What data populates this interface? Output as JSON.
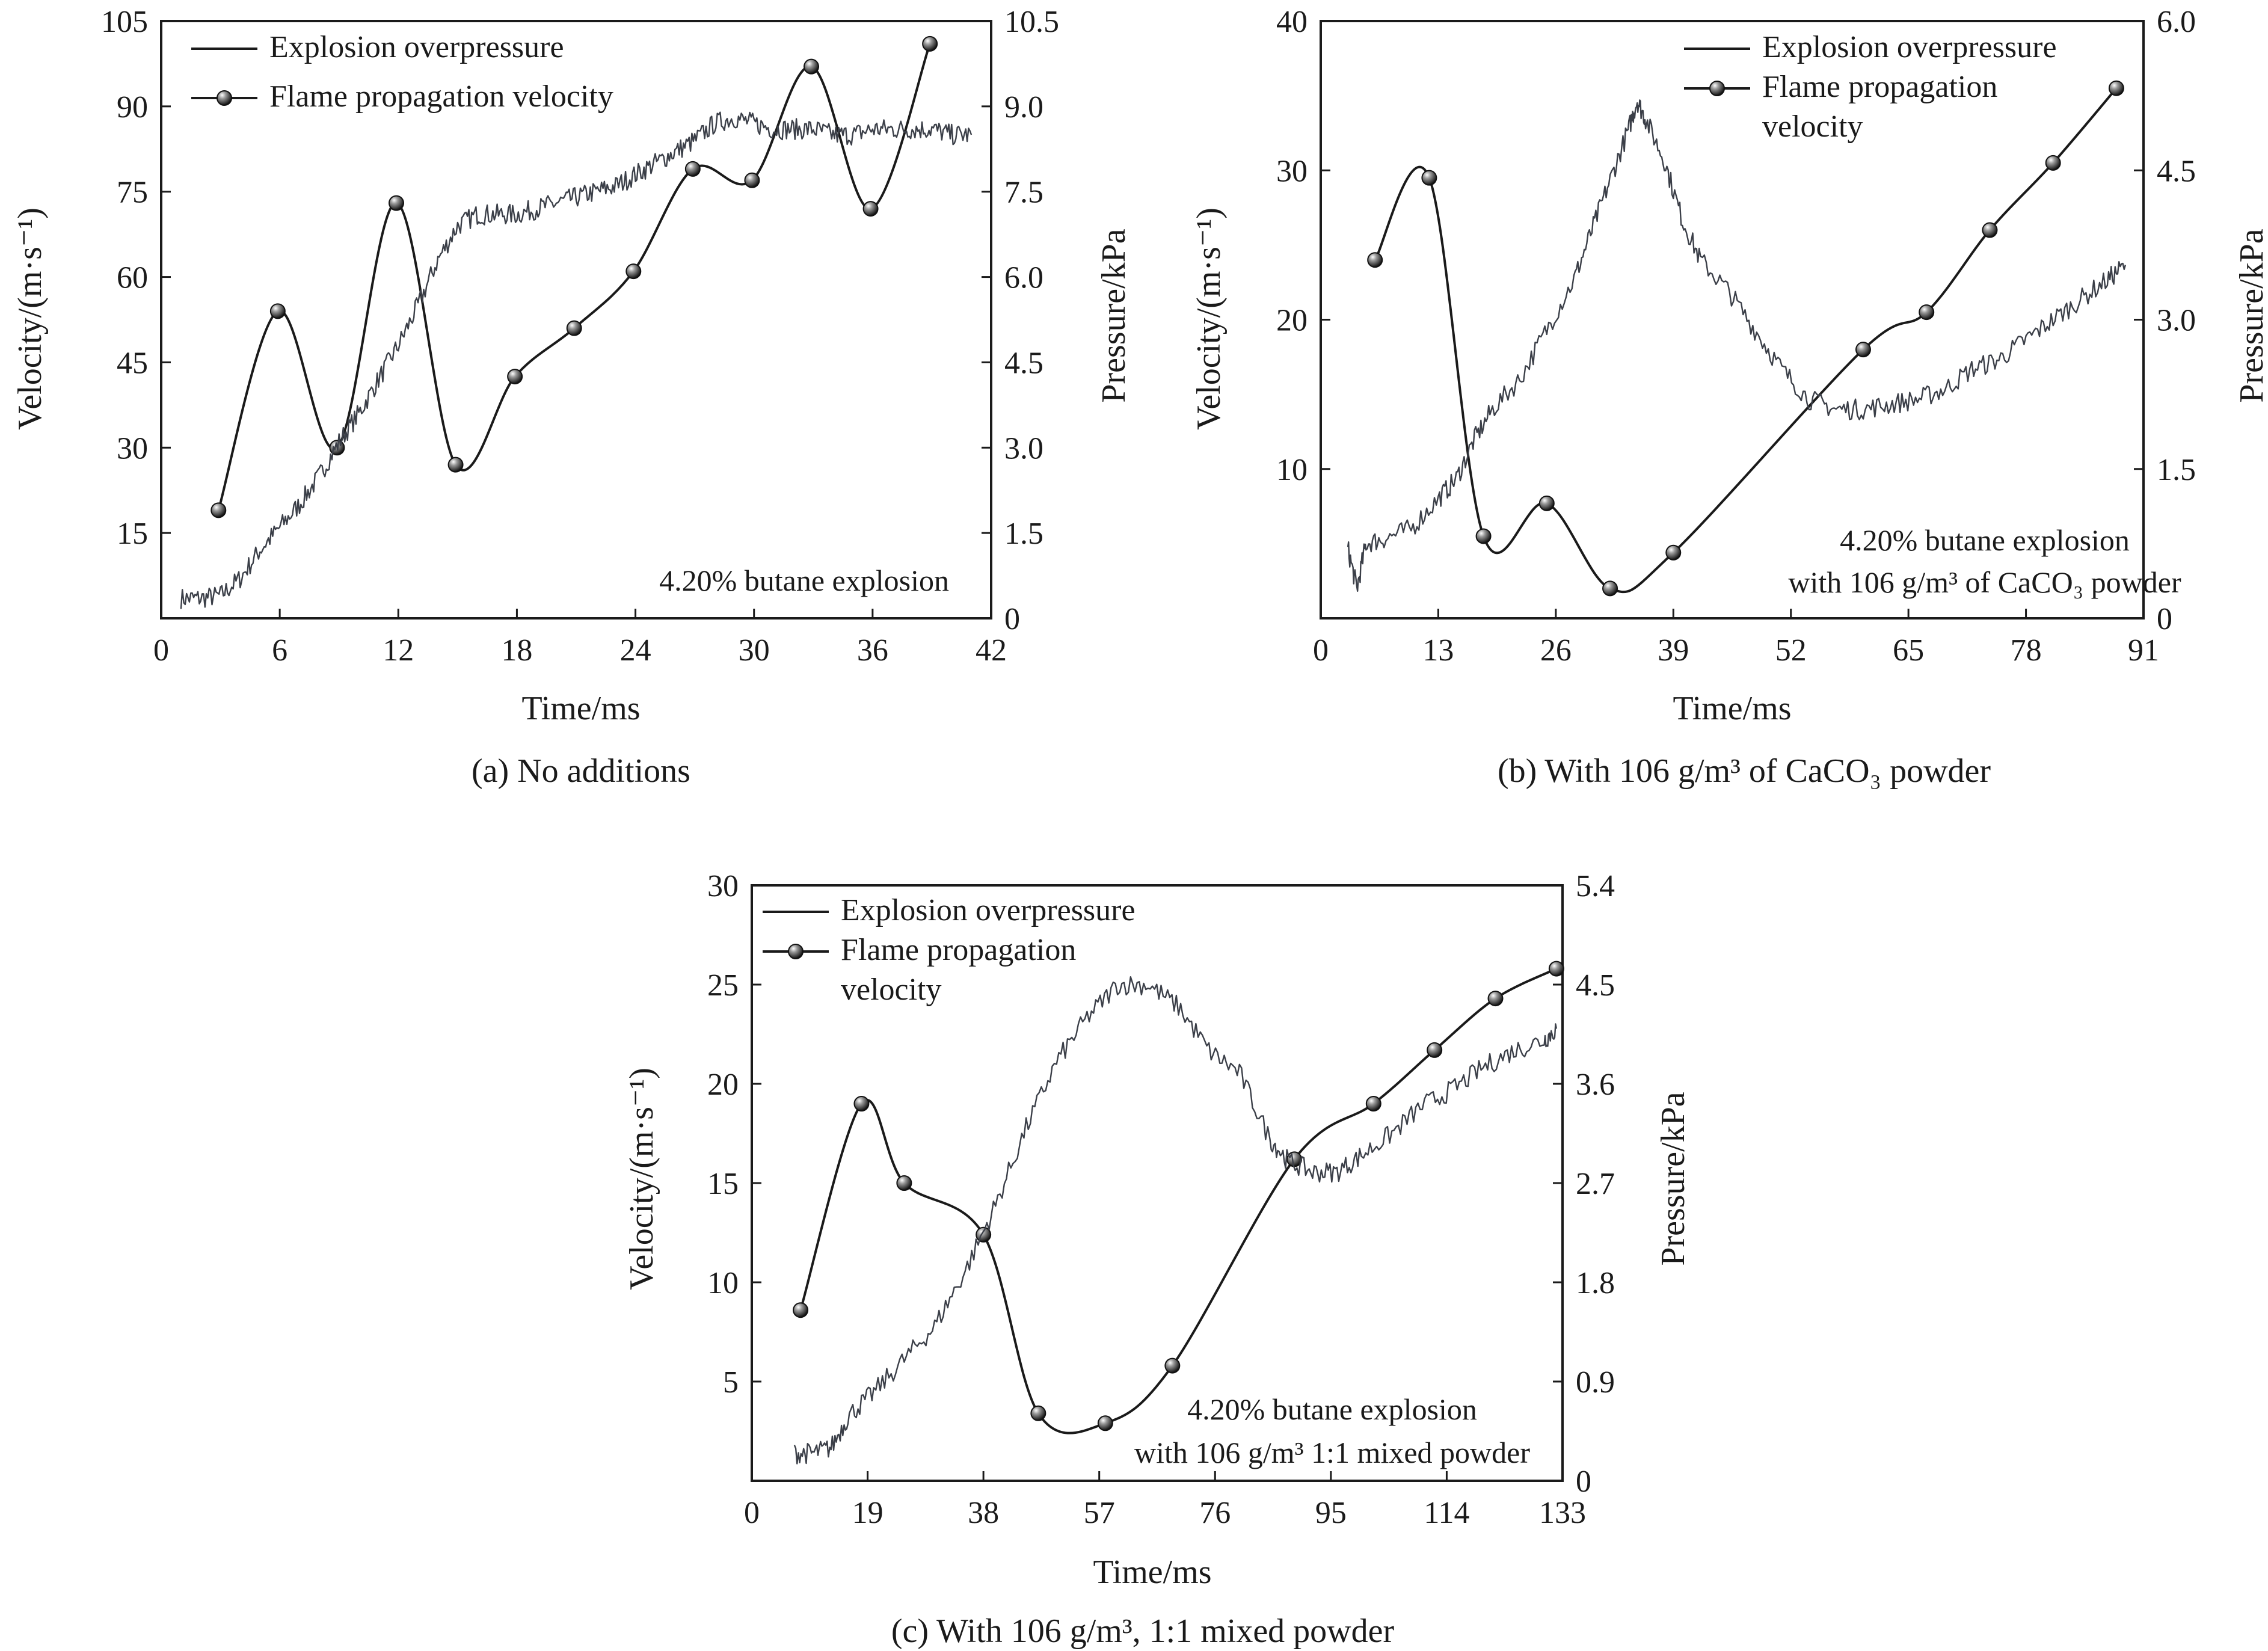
{
  "chart_data": [
    {
      "type": "line",
      "panel": "a",
      "caption": "(a) No additions",
      "xlabel": "Time/ms",
      "ylabel_left": "Velocity/(m·s⁻¹)",
      "ylabel_right": "Pressure/kPa",
      "annotation": [
        "4.20% butane explosion"
      ],
      "xlim": [
        0,
        42
      ],
      "x_ticks": [
        "0",
        "6",
        "12",
        "18",
        "24",
        "30",
        "36",
        "42"
      ],
      "ylim_left": [
        0,
        105
      ],
      "y_ticks_left": [
        "15",
        "30",
        "45",
        "60",
        "75",
        "90",
        "105"
      ],
      "ylim_right": [
        0,
        10.5
      ],
      "y_ticks_right": [
        "0",
        "1.5",
        "3.0",
        "4.5",
        "6.0",
        "7.5",
        "9.0",
        "10.5"
      ],
      "legend": [
        "Explosion overpressure",
        "Flame propagation velocity"
      ],
      "legend_position": "top-left",
      "series": [
        {
          "name": "Flame propagation velocity",
          "axis": "left",
          "marker": "ball",
          "x": [
            2.9,
            5.9,
            8.9,
            11.9,
            14.9,
            17.9,
            20.9,
            23.9,
            26.9,
            29.9,
            32.9,
            35.9,
            38.9
          ],
          "y": [
            19,
            54,
            30,
            73,
            27,
            42.5,
            51,
            61,
            79,
            77,
            97,
            72,
            101
          ]
        },
        {
          "name": "Explosion overpressure",
          "axis": "right",
          "x": [
            1,
            2,
            3,
            4,
            5,
            6,
            7,
            8,
            9,
            10,
            11,
            12,
            13,
            14,
            15,
            16,
            17,
            18,
            19,
            20,
            21,
            22,
            23,
            24,
            25,
            26,
            27,
            28,
            29,
            30,
            31,
            32,
            33,
            34,
            35,
            36,
            37,
            38,
            39,
            40,
            41
          ],
          "y": [
            0.35,
            0.35,
            0.4,
            0.7,
            1.2,
            1.6,
            2.0,
            2.5,
            3.1,
            3.6,
            4.2,
            4.8,
            5.5,
            6.3,
            6.9,
            7.1,
            7.1,
            7.1,
            7.2,
            7.3,
            7.4,
            7.5,
            7.6,
            7.8,
            8.0,
            8.2,
            8.4,
            8.7,
            8.8,
            8.7,
            8.6,
            8.6,
            8.6,
            8.5,
            8.5,
            8.6,
            8.6,
            8.6,
            8.6,
            8.5,
            8.5
          ]
        }
      ]
    },
    {
      "type": "line",
      "panel": "b",
      "caption": "(b) With 106 g/m³ of CaCO₃ powder",
      "xlabel": "Time/ms",
      "ylabel_left": "Velocity/(m·s⁻¹)",
      "ylabel_right": "Pressure/kPa",
      "annotation": [
        "4.20% butane explosion",
        "with 106 g/m³ of CaCO₃ powder"
      ],
      "xlim": [
        0,
        91
      ],
      "x_ticks": [
        "0",
        "13",
        "26",
        "39",
        "52",
        "65",
        "78",
        "91"
      ],
      "ylim_left": [
        0,
        40
      ],
      "y_ticks_left": [
        "10",
        "20",
        "30",
        "40"
      ],
      "ylim_right": [
        0,
        6.0
      ],
      "y_ticks_right": [
        "0",
        "1.5",
        "3.0",
        "4.5",
        "6.0"
      ],
      "legend": [
        "Explosion overpressure",
        "Flame propagation",
        "velocity"
      ],
      "legend_position": "top-right",
      "series": [
        {
          "name": "Flame propagation velocity",
          "axis": "left",
          "marker": "ball",
          "x": [
            6,
            12,
            18,
            25,
            32,
            39,
            60,
            67,
            74,
            81,
            88
          ],
          "y": [
            24,
            29.5,
            5.5,
            7.7,
            2.0,
            4.4,
            18,
            20.5,
            26,
            30.5,
            35.5
          ]
        },
        {
          "name": "Explosion overpressure",
          "axis": "right",
          "x": [
            3,
            4,
            5,
            7,
            10,
            13,
            15,
            17,
            19,
            22,
            25,
            28,
            30,
            32,
            34,
            35,
            36,
            38,
            40,
            42,
            45,
            48,
            51,
            54,
            57,
            60,
            63,
            66,
            69,
            72,
            75,
            78,
            81,
            84,
            87,
            89
          ],
          "y": [
            0.7,
            0.3,
            0.75,
            0.8,
            0.9,
            1.2,
            1.4,
            1.8,
            2.1,
            2.4,
            2.9,
            3.4,
            3.9,
            4.4,
            4.9,
            5.2,
            5.0,
            4.6,
            4.0,
            3.6,
            3.3,
            2.9,
            2.5,
            2.2,
            2.1,
            2.1,
            2.15,
            2.2,
            2.3,
            2.5,
            2.6,
            2.8,
            3.0,
            3.2,
            3.4,
            3.55
          ]
        }
      ]
    },
    {
      "type": "line",
      "panel": "c",
      "caption": "(c) With 106 g/m³, 1:1 mixed powder",
      "xlabel": "Time/ms",
      "ylabel_left": "Velocity/(m·s⁻¹)",
      "ylabel_right": "Pressure/kPa",
      "annotation": [
        "4.20% butane explosion",
        "with 106 g/m³ 1:1 mixed powder"
      ],
      "xlim": [
        0,
        133
      ],
      "x_ticks": [
        "0",
        "19",
        "38",
        "57",
        "76",
        "95",
        "114",
        "133"
      ],
      "ylim_left": [
        0,
        30
      ],
      "y_ticks_left": [
        "5",
        "10",
        "15",
        "20",
        "25",
        "30"
      ],
      "ylim_right": [
        0,
        5.4
      ],
      "y_ticks_right": [
        "0",
        "0.9",
        "1.8",
        "2.7",
        "3.6",
        "4.5",
        "5.4"
      ],
      "legend": [
        "Explosion overpressure",
        "Flame propagation",
        "velocity"
      ],
      "legend_position": "top-left",
      "series": [
        {
          "name": "Flame propagation velocity",
          "axis": "left",
          "marker": "ball",
          "x": [
            8,
            18,
            25,
            38,
            47,
            58,
            69,
            89,
            102,
            112,
            122,
            132
          ],
          "y": [
            8.6,
            19,
            15,
            12.4,
            3.4,
            2.9,
            5.8,
            16.2,
            19,
            21.7,
            24.3,
            25.8
          ]
        },
        {
          "name": "Explosion overpressure",
          "axis": "right",
          "x": [
            7,
            10,
            13,
            16,
            20,
            25,
            30,
            35,
            40,
            45,
            50,
            55,
            60,
            65,
            70,
            75,
            80,
            85,
            88,
            92,
            96,
            100,
            105,
            110,
            115,
            120,
            125,
            130,
            132
          ],
          "y": [
            0.25,
            0.25,
            0.3,
            0.6,
            0.8,
            1.1,
            1.4,
            1.9,
            2.5,
            3.2,
            3.8,
            4.2,
            4.5,
            4.5,
            4.3,
            3.9,
            3.7,
            3.1,
            2.9,
            2.8,
            2.8,
            2.95,
            3.15,
            3.4,
            3.55,
            3.75,
            3.9,
            4.0,
            4.1
          ]
        }
      ]
    }
  ]
}
